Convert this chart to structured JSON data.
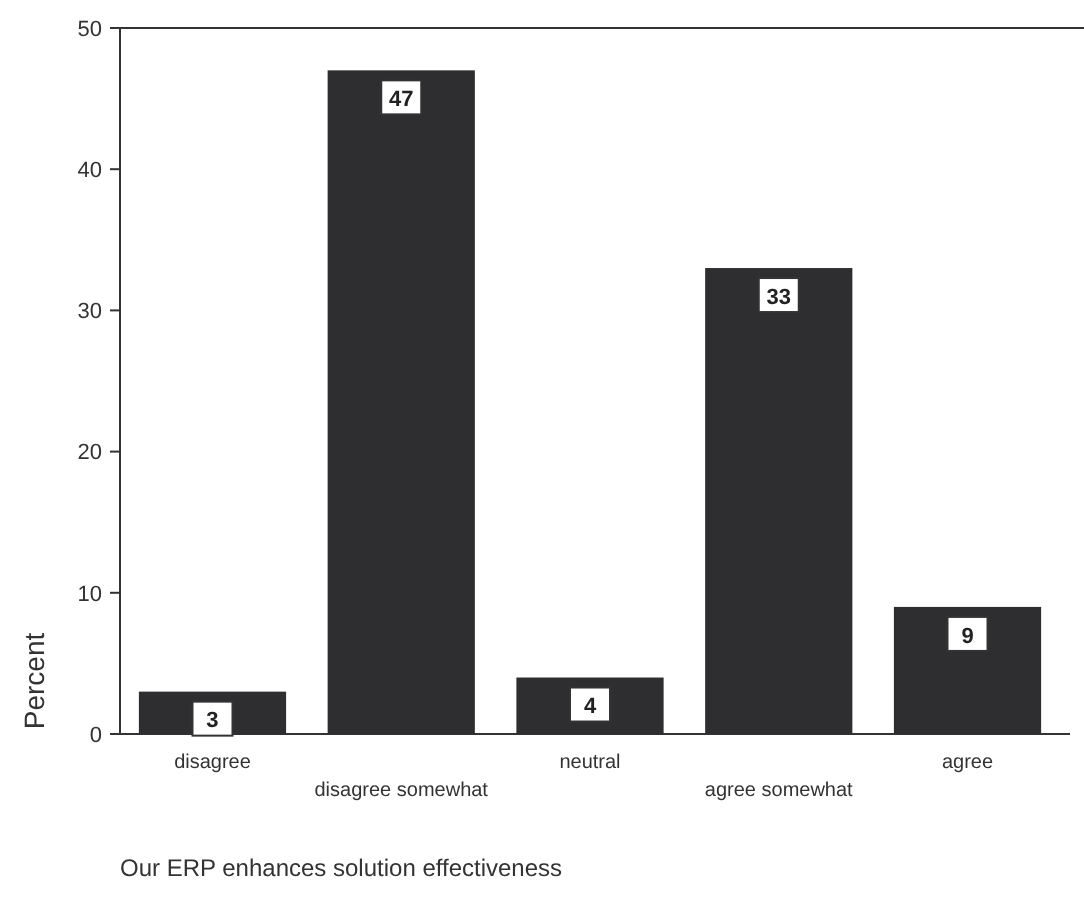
{
  "chart_data": {
    "type": "bar",
    "xlabel": "Our ERP enhances solution effectiveness",
    "ylabel": "Percent",
    "categories": [
      "disagree",
      "disagree somewhat",
      "neutral",
      "agree somewhat",
      "agree"
    ],
    "values": [
      3,
      47,
      4,
      33,
      9
    ],
    "color": "#2e2e30",
    "data_labels": true,
    "ylim": [
      0,
      50
    ],
    "yticks": [
      0,
      10,
      20,
      30,
      40,
      50
    ]
  }
}
